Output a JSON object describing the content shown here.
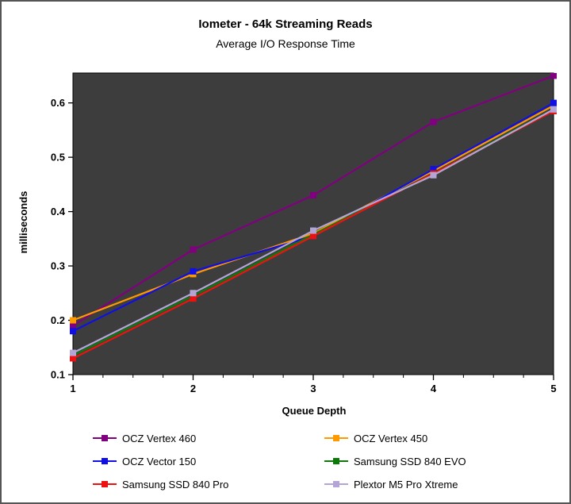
{
  "title": "Iometer - 64k Streaming Reads",
  "subtitle": "Average I/O Response Time",
  "chart_data": {
    "type": "line",
    "title": "Iometer - 64k Streaming Reads",
    "subtitle": "Average I/O Response Time",
    "xlabel": "Queue Depth",
    "ylabel": "milliseconds",
    "x": [
      1,
      2,
      3,
      4,
      5
    ],
    "xlim": [
      1,
      5
    ],
    "ylim": [
      0.1,
      0.655
    ],
    "x_ticks": [
      1,
      2,
      3,
      4,
      5
    ],
    "x_minor_step": 0.25,
    "y_ticks": [
      0.1,
      0.2,
      0.3,
      0.4,
      0.5,
      0.6
    ],
    "grid": false,
    "plot_bg": "#3d3d3d",
    "legend_position": "bottom",
    "series": [
      {
        "name": "OCZ Vertex 460",
        "color": "#800080",
        "values": [
          0.19,
          0.33,
          0.43,
          0.565,
          0.65
        ]
      },
      {
        "name": "OCZ Vertex 450",
        "color": "#ff9900",
        "values": [
          0.2,
          0.285,
          0.36,
          0.475,
          0.595
        ]
      },
      {
        "name": "OCZ Vector 150",
        "color": "#0f0fe6",
        "values": [
          0.18,
          0.29,
          0.355,
          0.478,
          0.6
        ]
      },
      {
        "name": "Samsung SSD 840 EVO",
        "color": "#0b7a0b",
        "values": [
          0.135,
          0.245,
          0.358,
          0.47,
          0.588
        ]
      },
      {
        "name": "Samsung SSD 840 Pro",
        "color": "#ee1111",
        "values": [
          0.13,
          0.24,
          0.355,
          0.47,
          0.585
        ]
      },
      {
        "name": "Plextor M5 Pro Xtreme",
        "color": "#b3a6d6",
        "values": [
          0.14,
          0.25,
          0.365,
          0.467,
          0.588
        ]
      }
    ]
  }
}
